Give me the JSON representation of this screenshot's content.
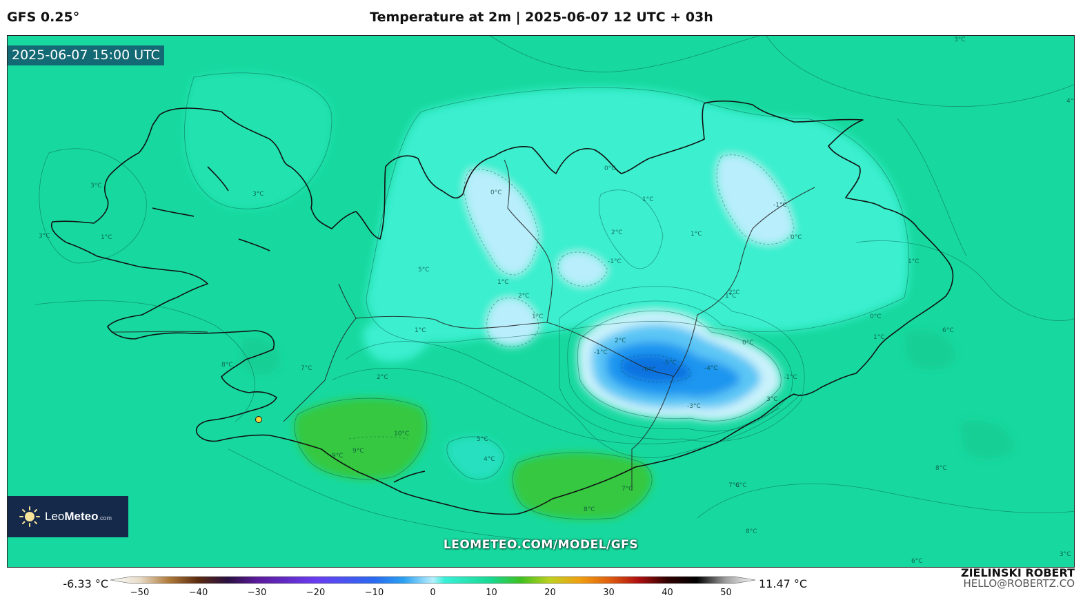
{
  "header": {
    "model": "GFS 0.25°",
    "title": "Temperature at 2m | 2025-06-07 12 UTC + 03h"
  },
  "map": {
    "valid_time": "2025-06-07 15:00 UTC",
    "watermark": "LEOMETEO.COM/MODEL/GFS",
    "contour_labels": [
      "3°C",
      "3°C",
      "4°C",
      "5°C",
      "3°C",
      "2°C",
      "1°C",
      "0°C",
      "-1°C",
      "1°C",
      "2°C",
      "1°C",
      "0°C",
      "-1°C",
      "0°C",
      "1°C",
      "2°C",
      "-1°C",
      "1°C",
      "0°C",
      "-1°C",
      "2°C",
      "-6°C",
      "-5°C",
      "-4°C",
      "-3°C",
      "1°C",
      "0°C",
      "1°C",
      "3°C",
      "2°C",
      "1°C",
      "6°C",
      "7°C",
      "8°C",
      "9°C",
      "10°C",
      "5°C",
      "4°C",
      "9°C",
      "8°C",
      "7°C",
      "6°C",
      "8°C",
      "8°C",
      "6°C",
      "3°C",
      "3°C",
      "1°C",
      "7°C"
    ],
    "colors": {
      "sea": "#17d99f",
      "cold_core": "#1a8cf0",
      "warm": "#34c93a",
      "coast": "#111111"
    }
  },
  "logo": {
    "brand_light": "Leo",
    "brand_bold": "Meteo",
    "suffix": ".com"
  },
  "legend": {
    "min": "-6.33 °C",
    "max": "11.47 °C",
    "ticks": [
      "−50",
      "−40",
      "−30",
      "−20",
      "−10",
      "0",
      "10",
      "20",
      "30",
      "40",
      "50"
    ],
    "tick_values": [
      -50,
      -40,
      -30,
      -20,
      -10,
      0,
      10,
      20,
      30,
      40,
      50
    ],
    "stops": [
      {
        "v": -55,
        "c": "#ffffff"
      },
      {
        "v": -50,
        "c": "#e8dcc8"
      },
      {
        "v": -45,
        "c": "#b07a3a"
      },
      {
        "v": -40,
        "c": "#5a2a10"
      },
      {
        "v": -35,
        "c": "#2a1040"
      },
      {
        "v": -30,
        "c": "#5a1a9a"
      },
      {
        "v": -20,
        "c": "#6a3cf0"
      },
      {
        "v": -10,
        "c": "#2a6af0"
      },
      {
        "v": -5,
        "c": "#2aa0f0"
      },
      {
        "v": 0,
        "c": "#b8f0ff"
      },
      {
        "v": 2,
        "c": "#38f0d8"
      },
      {
        "v": 10,
        "c": "#18d890"
      },
      {
        "v": 15,
        "c": "#40c020"
      },
      {
        "v": 20,
        "c": "#c0d020"
      },
      {
        "v": 25,
        "c": "#f0a010"
      },
      {
        "v": 30,
        "c": "#e06010"
      },
      {
        "v": 35,
        "c": "#b01010"
      },
      {
        "v": 40,
        "c": "#300000"
      },
      {
        "v": 45,
        "c": "#000000"
      },
      {
        "v": 50,
        "c": "#a0a0a0"
      },
      {
        "v": 55,
        "c": "#ffffff"
      }
    ]
  },
  "credit": {
    "name": "ZIELINSKI ROBERT",
    "email": "HELLO@ROBERTZ.CO"
  }
}
